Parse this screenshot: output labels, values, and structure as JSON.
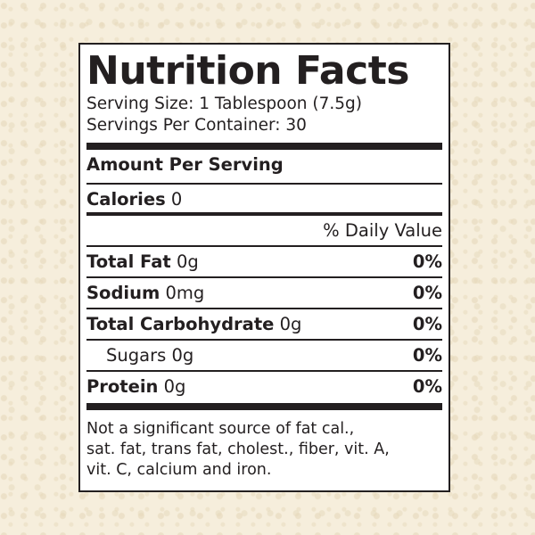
{
  "title": "Nutrition Facts",
  "serving_size": "Serving Size: 1 Tablespoon (7.5g)",
  "servings_per_container": "Servings Per Container: 30",
  "amount_per_serving": "Amount Per Serving",
  "calories": {
    "label": "Calories",
    "value": "0"
  },
  "daily_value_header": "% Daily Value",
  "nutrients": [
    {
      "label": "Total Fat",
      "amount": "0g",
      "dv": "0%",
      "bold": true
    },
    {
      "label": "Sodium",
      "amount": "0mg",
      "dv": "0%",
      "bold": true
    },
    {
      "label": "Total Carbohydrate",
      "amount": "0g",
      "dv": "0%",
      "bold": true
    },
    {
      "label": "Sugars",
      "amount": "0g",
      "dv": "0%",
      "bold": false
    },
    {
      "label": "Protein",
      "amount": "0g",
      "dv": "0%",
      "bold": true
    }
  ],
  "footnote_lines": [
    "Not a significant source of fat cal.,",
    "sat. fat, trans fat, cholest., fiber, vit. A,",
    "vit. C, calcium and iron."
  ],
  "colors": {
    "ink": "#231f20",
    "background": "#f6eedc",
    "panel": "#ffffff"
  }
}
